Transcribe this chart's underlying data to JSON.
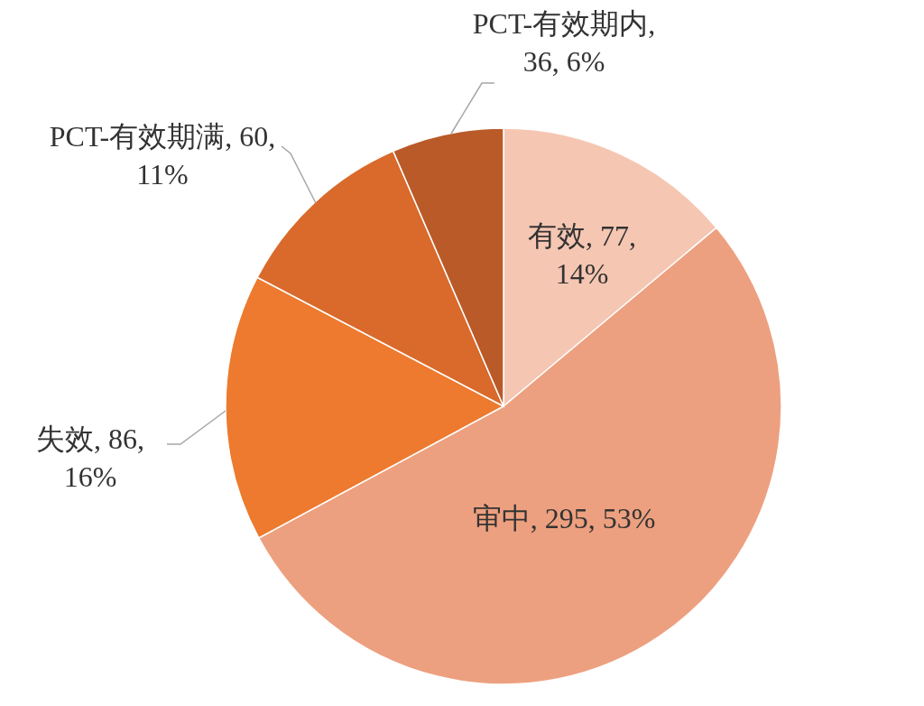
{
  "chart_data": {
    "type": "pie",
    "categories": [
      "有效",
      "审中",
      "失效",
      "PCT-有效期满",
      "PCT-有效期内"
    ],
    "values": [
      77,
      295,
      86,
      60,
      36
    ],
    "value_labels": [
      ", 77, 14%",
      ", 295, 53%",
      ", 86, 16%",
      ", 60, 11%",
      ", 36, 6%"
    ],
    "colors": [
      "#f5c6b2",
      "#eda07f",
      "#ed7a2f",
      "#d96a2b",
      "#b95a28"
    ],
    "data_labels": true
  }
}
